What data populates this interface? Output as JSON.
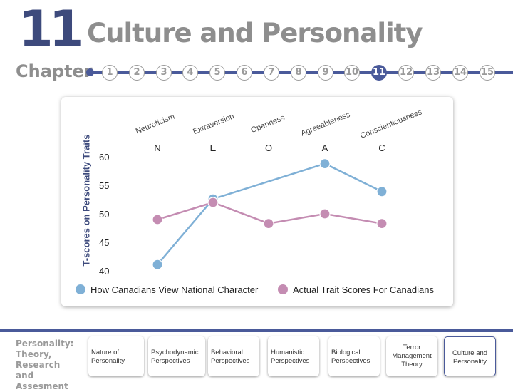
{
  "header": {
    "chapter_number": "11",
    "chapter_title": "Culture and Personality",
    "chapter_label": "Chapter",
    "chapter_nav": [
      "1",
      "2",
      "3",
      "4",
      "5",
      "6",
      "7",
      "8",
      "9",
      "10",
      "11",
      "12",
      "13",
      "14",
      "15"
    ],
    "active_chapter": "11"
  },
  "chart_data": {
    "type": "line",
    "ylabel": "T-scores on Personality Traits",
    "ylim": [
      40,
      60
    ],
    "yticks": [
      60,
      55,
      50,
      45,
      40
    ],
    "categories": [
      "N",
      "E",
      "O",
      "A",
      "C"
    ],
    "category_names": [
      "Neuroticism",
      "Extraversion",
      "Openness",
      "Agreeableness",
      "Conscientiousness"
    ],
    "series": [
      {
        "name": "How Canadians View National Character",
        "color": "#7fb0d6",
        "values": [
          41.1,
          52.6,
          null,
          58.8,
          53.9
        ]
      },
      {
        "name": "Actual Trait Scores For Canadians",
        "color": "#c48cb2",
        "values": [
          49.0,
          52.0,
          48.3,
          50.0,
          48.3
        ]
      }
    ],
    "grid": false,
    "legend_position": "bottom"
  },
  "footer": {
    "book_title_lines": [
      "Personality:",
      "Theory, Research",
      "and Assesment"
    ],
    "nav_tabs": [
      {
        "label": "Nature of Personality"
      },
      {
        "label": "Psychodynamic Perspectives"
      },
      {
        "label": "Behavioral Perspectives"
      },
      {
        "label": "Humanistic Perspectives"
      },
      {
        "label": "Biological Perspectives"
      },
      {
        "label": "Terror Management Theory"
      },
      {
        "label": "Culture and Personality"
      }
    ]
  }
}
